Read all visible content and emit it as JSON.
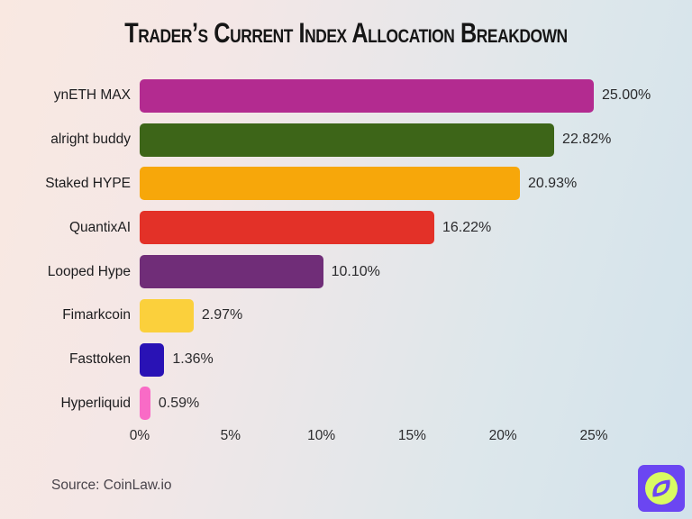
{
  "title": "Trader’s Current Index Allocation Breakdown",
  "source_label": "Source: CoinLaw.io",
  "logo": {
    "name": "coinlaw-compass-logo",
    "bg_color": "#6b46f2",
    "fg_color": "#d9fb62"
  },
  "colors": {
    "title_text": "#161616",
    "label_text": "#1c1c1e",
    "value_text": "#2a2a2c",
    "source_text": "#49444b",
    "background_left": "#f9e8e1",
    "background_right": "#d2e2eb"
  },
  "chart_data": {
    "type": "bar",
    "orientation": "horizontal",
    "title": "Trader’s Current Index Allocation Breakdown",
    "categories": [
      "ynETH MAX",
      "alright buddy",
      "Staked HYPE",
      "QuantixAI",
      "Looped Hype",
      "Fimarkcoin",
      "Fasttoken",
      "Hyperliquid"
    ],
    "values": [
      25.0,
      22.82,
      20.93,
      16.22,
      10.1,
      2.97,
      1.36,
      0.59
    ],
    "value_labels": [
      "25.00%",
      "22.82%",
      "20.93%",
      "16.22%",
      "10.10%",
      "2.97%",
      "1.36%",
      "0.59%"
    ],
    "bar_colors": [
      "#b32b90",
      "#3d6518",
      "#f7a70a",
      "#e33128",
      "#702d78",
      "#fbd03c",
      "#2912b5",
      "#f96bc6"
    ],
    "xlabel": "",
    "ylabel": "",
    "x_ticks": [
      "0%",
      "5%",
      "10%",
      "15%",
      "20%",
      "25%"
    ],
    "x_tick_values": [
      0,
      5,
      10,
      15,
      20,
      25
    ],
    "xlim": [
      0,
      25
    ],
    "grid": false,
    "legend": false
  }
}
